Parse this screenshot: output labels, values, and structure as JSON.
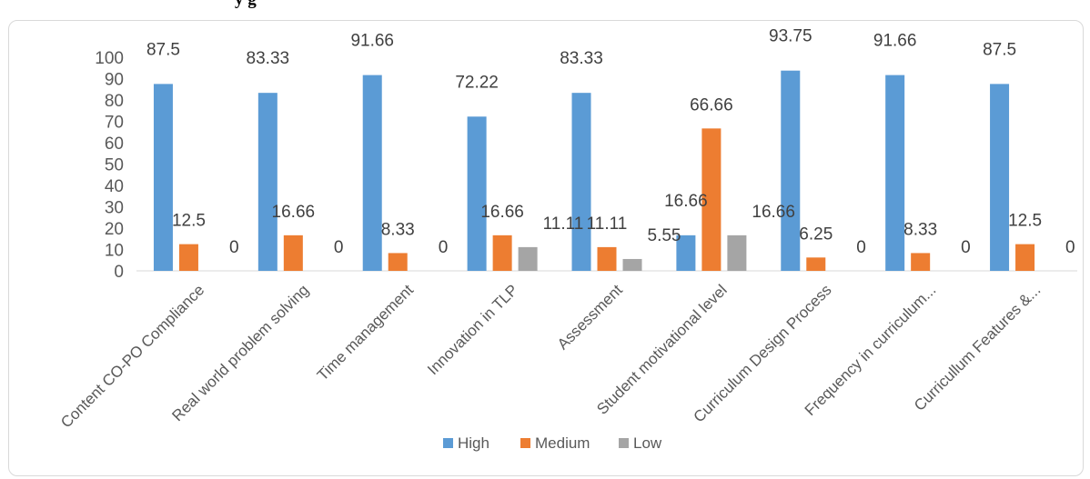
{
  "title_fragment": "y                                        g",
  "chart_data": {
    "type": "bar",
    "categories": [
      "Content CO-PO Compliance",
      "Real world problem solving",
      "Time management",
      "Innovation in TLP",
      "Assessment",
      "Student motivational level",
      "Curriculum Design Process",
      "Frequency in curriculum...",
      "Curricullum Features &..."
    ],
    "series": [
      {
        "name": "High",
        "color": "#5b9bd5",
        "values": [
          87.5,
          83.33,
          91.66,
          72.22,
          83.33,
          16.66,
          93.75,
          91.66,
          87.5
        ]
      },
      {
        "name": "Medium",
        "color": "#ed7d31",
        "values": [
          12.5,
          16.66,
          8.33,
          16.66,
          11.11,
          66.66,
          6.25,
          8.33,
          12.5
        ]
      },
      {
        "name": "Low",
        "color": "#a5a5a5",
        "values": [
          0,
          0,
          0,
          11.11,
          5.55,
          16.66,
          0,
          0,
          0
        ]
      }
    ],
    "value_labels": [
      [
        "87.5",
        "83.33",
        "91.66",
        "72.22",
        "83.33",
        "16.66",
        "93.75",
        "91.66",
        "87.5"
      ],
      [
        "12.5",
        "16.66",
        "8.33",
        "16.66",
        "11.11",
        "66.66",
        "6.25",
        "8.33",
        "12.5"
      ],
      [
        "0",
        "0",
        "0",
        "11.11",
        "5.55",
        "16.66",
        "0",
        "0",
        "0"
      ]
    ],
    "yticks": [
      "0",
      "10",
      "20",
      "30",
      "40",
      "50",
      "60",
      "70",
      "80",
      "90",
      "100"
    ],
    "ylim": [
      0,
      100
    ],
    "grid": false,
    "legend_position": "bottom",
    "title": "",
    "xlabel": "",
    "ylabel": ""
  }
}
